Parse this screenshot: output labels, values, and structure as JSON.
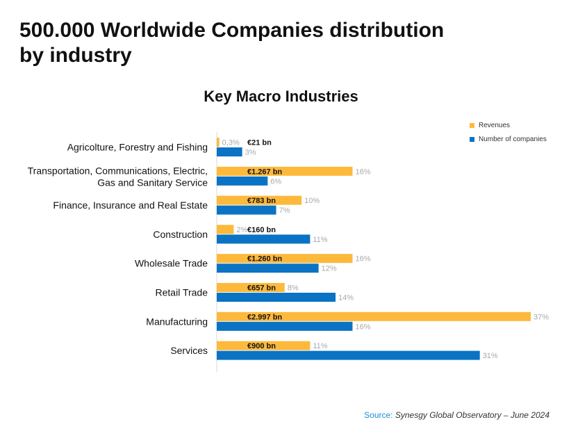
{
  "header": {
    "title_line1": "500.000 Worldwide Companies distribution",
    "title_line2": "by industry"
  },
  "footer": {
    "source_label": "Source:",
    "source_text": "Synesgy Global Observatory – June 2024"
  },
  "colors": {
    "revenues": "#fdb93c",
    "companies": "#0a73c4",
    "pct_label": "#a8a8a8",
    "axis": "#d9d9d9"
  },
  "chart_data": {
    "type": "bar",
    "orientation": "horizontal",
    "title": "Key Macro Industries",
    "legend_position": "top-right",
    "grid": false,
    "xlim": [
      0,
      37
    ],
    "categories": [
      [
        "Agricolture, Forestry and Fishing"
      ],
      [
        "Transportation, Communications, Electric,",
        "Gas and Sanitary Service"
      ],
      [
        "Finance, Insurance and Real Estate"
      ],
      [
        "Construction"
      ],
      [
        "Wholesale Trade"
      ],
      [
        "Retail Trade"
      ],
      [
        "Manufacturing"
      ],
      [
        "Services"
      ]
    ],
    "series": [
      {
        "name": "Revenues",
        "values": [
          0.3,
          16,
          10,
          2,
          16,
          8,
          37,
          11
        ],
        "pct_labels": [
          "0,3%",
          "16%",
          "10%",
          "2%",
          "16%",
          "8%",
          "37%",
          "11%"
        ],
        "amount_labels": [
          "€21 bn",
          "€1.267 bn",
          "€783 bn",
          "€160 bn",
          "€1.260 bn",
          "€657 bn",
          "€2.997 bn",
          "€900 bn"
        ]
      },
      {
        "name": "Number of companies",
        "values": [
          3,
          6,
          7,
          11,
          12,
          14,
          16,
          31
        ],
        "pct_labels": [
          "3%",
          "6%",
          "7%",
          "11%",
          "12%",
          "14%",
          "16%",
          "31%"
        ]
      }
    ]
  }
}
